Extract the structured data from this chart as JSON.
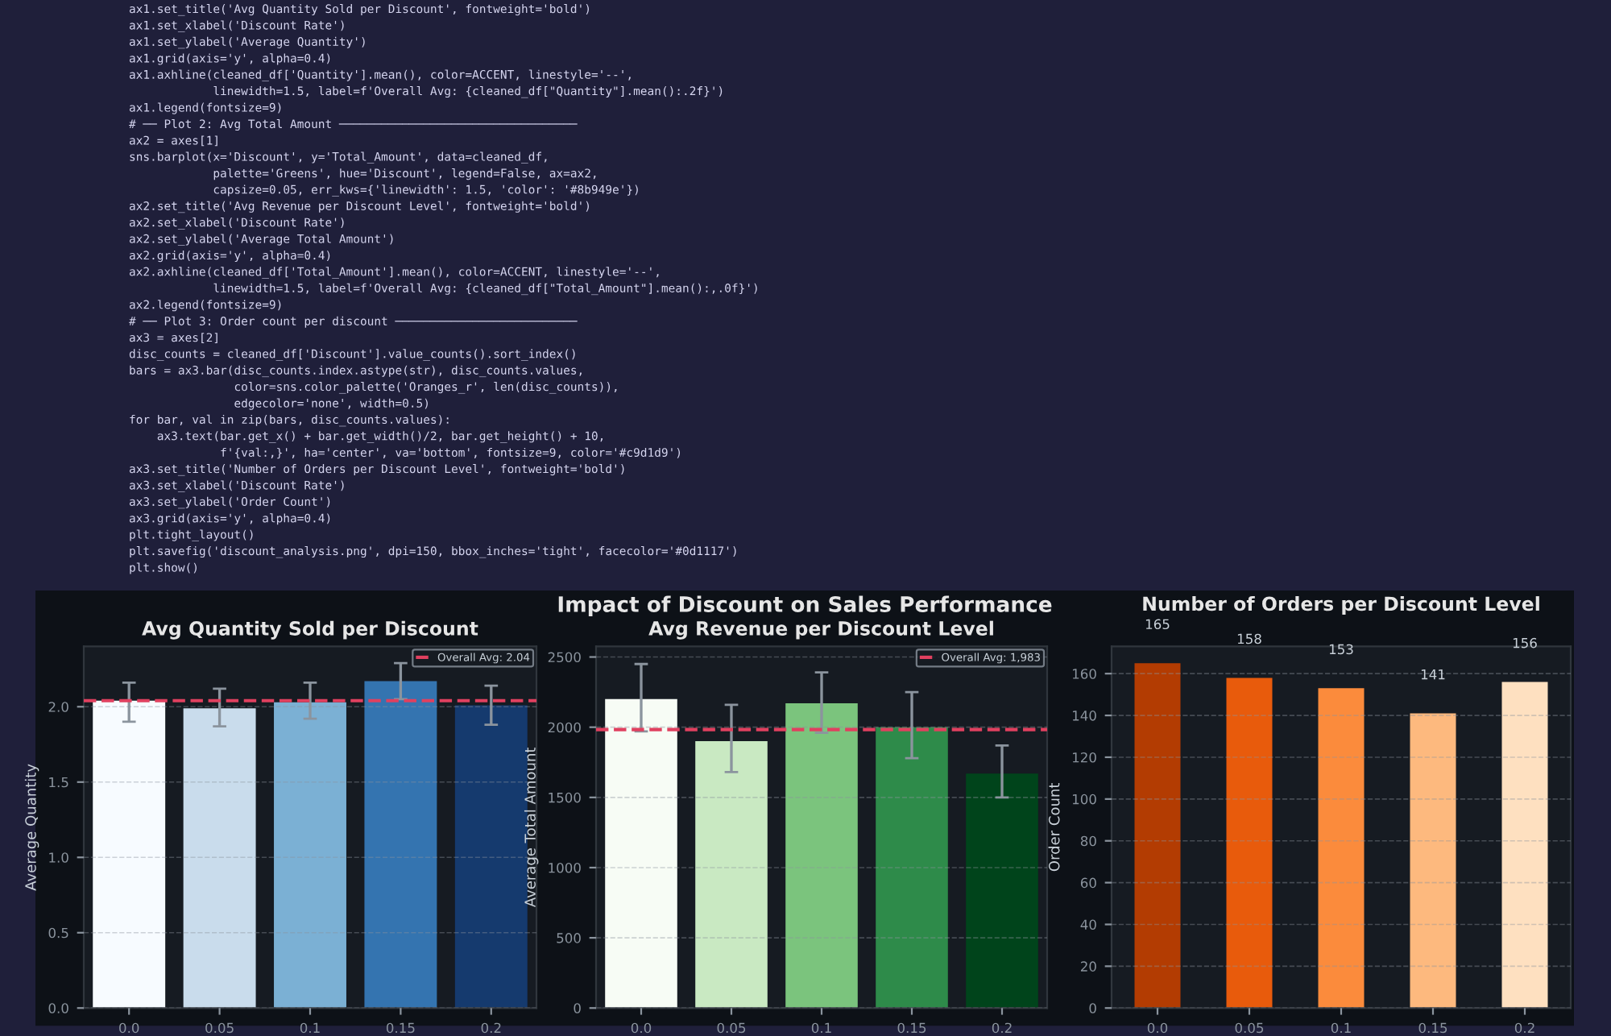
{
  "chart_data": [
    {
      "type": "other",
      "annotations": [
        "ax1.set_title('Avg Quantity Sold per Discount', fontweight='bold')",
        "ax1.set_xlabel('Discount Rate')",
        "ax1.set_ylabel('Average Quantity')",
        "ax1.grid(axis='y', alpha=0.4)",
        "ax1.axhline(cleaned_df['Quantity'].mean(), color=ACCENT, linestyle='--',",
        "            linewidth=1.5, label=f'Overall Avg: {cleaned_df[\"Quantity\"].mean():.2f}')",
        "ax1.legend(fontsize=9)",
        "# ── Plot 2: Avg Total Amount ──────────────────────────────────",
        "ax2 = axes[1]",
        "sns.barplot(x='Discount', y='Total_Amount', data=cleaned_df,",
        "            palette='Greens', hue='Discount', legend=False, ax=ax2,",
        "            capsize=0.05, err_kws={'linewidth': 1.5, 'color': '#8b949e'})",
        "ax2.set_title('Avg Revenue per Discount Level', fontweight='bold')",
        "ax2.set_xlabel('Discount Rate')",
        "ax2.set_ylabel('Average Total Amount')",
        "ax2.grid(axis='y', alpha=0.4)",
        "ax2.axhline(cleaned_df['Total_Amount'].mean(), color=ACCENT, linestyle='--',",
        "            linewidth=1.5, label=f'Overall Avg: {cleaned_df[\"Total_Amount\"].mean():,.0f}')",
        "ax2.legend(fontsize=9)",
        "# ── Plot 3: Order count per discount ──────────────────────────",
        "ax3 = axes[2]",
        "disc_counts = cleaned_df['Discount'].value_counts().sort_index()",
        "bars = ax3.bar(disc_counts.index.astype(str), disc_counts.values,",
        "               color=sns.color_palette('Oranges_r', len(disc_counts)),",
        "               edgecolor='none', width=0.5)",
        "for bar, val in zip(bars, disc_counts.values):",
        "    ax3.text(bar.get_x() + bar.get_width()/2, bar.get_height() + 10,",
        "             f'{val:,}', ha='center', va='bottom', fontsize=9, color='#c9d1d9')",
        "ax3.set_title('Number of Orders per Discount Level', fontweight='bold')",
        "ax3.set_xlabel('Discount Rate')",
        "ax3.set_ylabel('Order Count')",
        "ax3.grid(axis='y', alpha=0.4)",
        "plt.tight_layout()",
        "plt.savefig('discount_analysis.png', dpi=150, bbox_inches='tight', facecolor='#0d1117')",
        "plt.show()"
      ]
    },
    {
      "type": "other",
      "title": "Impact of Discount on Sales Performance"
    },
    {
      "type": "bar",
      "title": "Avg Quantity Sold per Discount",
      "ylabel": "Average Quantity",
      "categories": [
        "0.0",
        "0.05",
        "0.1",
        "0.15",
        "0.2"
      ],
      "values": [
        2.04,
        1.99,
        2.03,
        2.17,
        2.01
      ],
      "colors": [
        "#f7fbff",
        "#c9dcec",
        "#7bb0d4",
        "#3474b0",
        "#153a6e"
      ],
      "errors": [
        [
          1.9,
          2.16
        ],
        [
          1.87,
          2.12
        ],
        [
          1.92,
          2.16
        ],
        [
          2.05,
          2.29
        ],
        [
          1.88,
          2.14
        ]
      ],
      "ylim": [
        0,
        2.4
      ],
      "yticks": [
        {
          "value": 0,
          "label": "0.0"
        },
        {
          "value": 0.5,
          "label": "0.5"
        },
        {
          "value": 1,
          "label": "1.0"
        },
        {
          "value": 1.5,
          "label": "1.5"
        },
        {
          "value": 2,
          "label": "2.0"
        }
      ],
      "ref_lines": [
        {
          "axis": "y",
          "value": 2.04,
          "label": "Overall Avg: 2.04",
          "color": "#e0405f",
          "line_style": "dashed"
        }
      ],
      "grid": "y",
      "legend": "top right"
    },
    {
      "type": "bar",
      "title": "Avg Revenue per Discount Level",
      "ylabel": "Average Total Amount",
      "categories": [
        "0.0",
        "0.05",
        "0.1",
        "0.15",
        "0.2"
      ],
      "values": [
        2200,
        1900,
        2170,
        2000,
        1670
      ],
      "colors": [
        "#f7fcf5",
        "#c9e9c2",
        "#7bc47d",
        "#2e8b4a",
        "#00441b"
      ],
      "errors": [
        [
          1970,
          2450
        ],
        [
          1680,
          2160
        ],
        [
          1960,
          2390
        ],
        [
          1780,
          2250
        ],
        [
          1500,
          1870
        ]
      ],
      "ylim": [
        0,
        2575
      ],
      "yticks": [
        0,
        500,
        1000,
        1500,
        2000,
        2500
      ],
      "ref_lines": [
        {
          "axis": "y",
          "value": 1983,
          "label": "Overall Avg: 1,983",
          "color": "#e0405f",
          "line_style": "dashed"
        }
      ],
      "grid": "y",
      "legend": "top right"
    },
    {
      "type": "bar",
      "title": "Number of Orders per Discount Level",
      "ylabel": "Order Count",
      "categories": [
        "0.0",
        "0.05",
        "0.1",
        "0.15",
        "0.2"
      ],
      "values": [
        165,
        158,
        153,
        141,
        156
      ],
      "colors": [
        "#b33c02",
        "#e85b0c",
        "#fb8b3c",
        "#fdb97e",
        "#fee0c0"
      ],
      "ylim": [
        0,
        173
      ],
      "yticks": [
        0,
        20,
        40,
        60,
        80,
        100,
        120,
        140,
        160
      ],
      "data_labels": true,
      "grid": "y"
    }
  ]
}
